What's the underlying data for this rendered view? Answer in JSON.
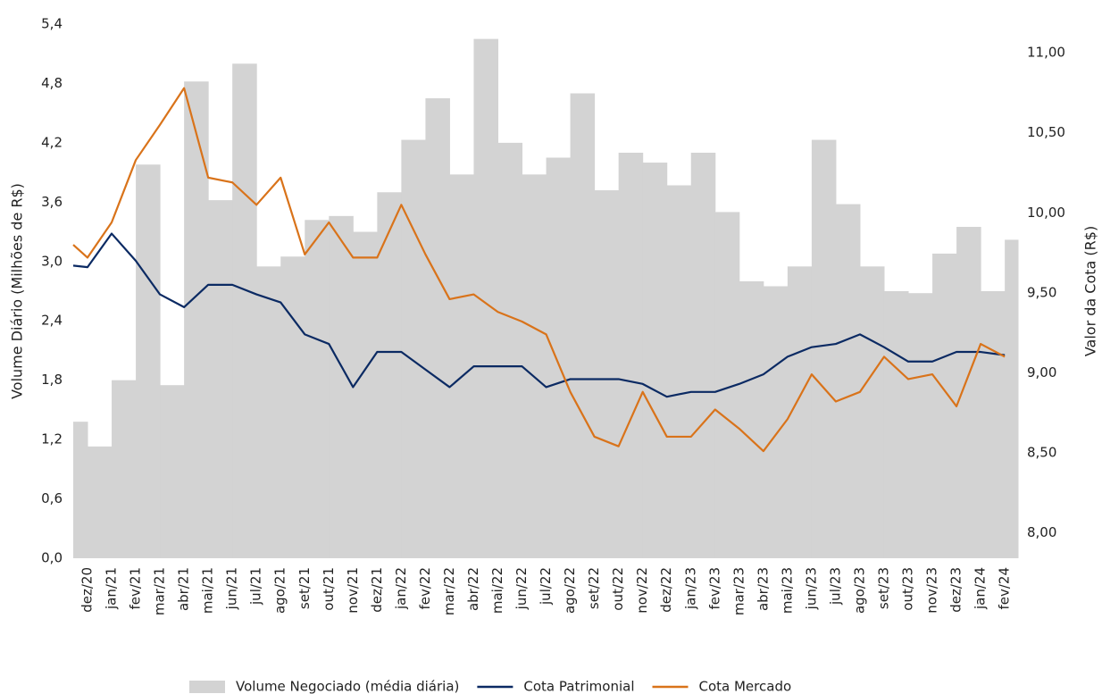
{
  "chart_data": {
    "type": "combo",
    "categories": [
      null,
      "dez/20",
      "jan/21",
      "fev/21",
      "mar/21",
      "abr/21",
      "mai/21",
      "jun/21",
      "jul/21",
      "ago/21",
      "set/21",
      "out/21",
      "nov/21",
      "dez/21",
      "jan/22",
      "fev/22",
      "mar/22",
      "abr/22",
      "mai/22",
      "jun/22",
      "jul/22",
      "ago/22",
      "set/22",
      "out/22",
      "nov/22",
      "dez/22",
      "jan/23",
      "fev/23",
      "mar/23",
      "abr/23",
      "mai/23",
      "jun/23",
      "jul/23",
      "ago/23",
      "set/23",
      "out/23",
      "nov/23",
      "dez/23",
      "jan/24",
      "fev/24"
    ],
    "y_label": "Volume Diário (Milhões de R$)",
    "y2_label": "Valor da Cota (R$)",
    "ylim": [
      0,
      5.4
    ],
    "yticks": [
      {
        "value": 0,
        "label": "0,0"
      },
      {
        "value": 0.6,
        "label": "0,6"
      },
      {
        "value": 1.2,
        "label": "1,2"
      },
      {
        "value": 1.8,
        "label": "1,8"
      },
      {
        "value": 2.4,
        "label": "2,4"
      },
      {
        "value": 3.0,
        "label": "3,0"
      },
      {
        "value": 3.6,
        "label": "3,6"
      },
      {
        "value": 4.2,
        "label": "4,2"
      },
      {
        "value": 4.8,
        "label": "4,8"
      },
      {
        "value": 5.4,
        "label": "5,4"
      }
    ],
    "y2lim": [
      7.84,
      11.18
    ],
    "y2ticks": [
      {
        "value": 8,
        "label": "8,00"
      },
      {
        "value": 8.5,
        "label": "8,50"
      },
      {
        "value": 9,
        "label": "9,00"
      },
      {
        "value": 9.5,
        "label": "9,50"
      },
      {
        "value": 10,
        "label": "10,00"
      },
      {
        "value": 10.5,
        "label": "10,50"
      },
      {
        "value": 11,
        "label": "11,00"
      }
    ],
    "legend": "bottom",
    "series": [
      {
        "name": "Volume Negociado (média diária)",
        "type": "area",
        "color": "#d3d3d3",
        "values": [
          1.38,
          1.13,
          1.8,
          3.98,
          1.75,
          4.82,
          3.62,
          5.0,
          2.95,
          3.05,
          3.42,
          3.46,
          3.3,
          3.7,
          4.23,
          4.65,
          3.88,
          5.25,
          4.2,
          3.88,
          4.05,
          4.7,
          3.72,
          4.1,
          4.0,
          3.77,
          4.1,
          3.5,
          2.8,
          2.75,
          2.95,
          4.23,
          3.58,
          2.95,
          2.7,
          2.68,
          3.08,
          3.35,
          2.7,
          3.22
        ]
      },
      {
        "name": "Cota Patrimonial",
        "type": "line",
        "axis": "y2",
        "color": "#0b2a63",
        "values": [
          9.67,
          9.66,
          9.87,
          9.7,
          9.49,
          9.41,
          9.55,
          9.55,
          9.49,
          9.44,
          9.24,
          9.18,
          8.91,
          9.13,
          9.13,
          9.02,
          8.91,
          9.04,
          9.04,
          9.04,
          8.91,
          8.96,
          8.96,
          8.96,
          8.93,
          8.85,
          8.88,
          8.88,
          8.93,
          8.99,
          9.1,
          9.16,
          9.18,
          9.24,
          9.16,
          9.07,
          9.07,
          9.13,
          9.13,
          9.11
        ]
      },
      {
        "name": "Cota Mercado",
        "type": "line",
        "axis": "y2",
        "color": "#d9731a",
        "values": [
          9.8,
          9.72,
          9.94,
          10.33,
          10.55,
          10.78,
          10.22,
          10.19,
          10.05,
          10.22,
          9.74,
          9.94,
          9.72,
          9.72,
          10.05,
          9.74,
          9.46,
          9.49,
          9.38,
          9.32,
          9.24,
          8.88,
          8.6,
          8.54,
          8.88,
          8.6,
          8.6,
          8.77,
          8.65,
          8.51,
          8.71,
          8.99,
          8.82,
          8.88,
          9.1,
          8.96,
          8.99,
          8.79,
          9.18,
          9.1
        ]
      }
    ]
  }
}
